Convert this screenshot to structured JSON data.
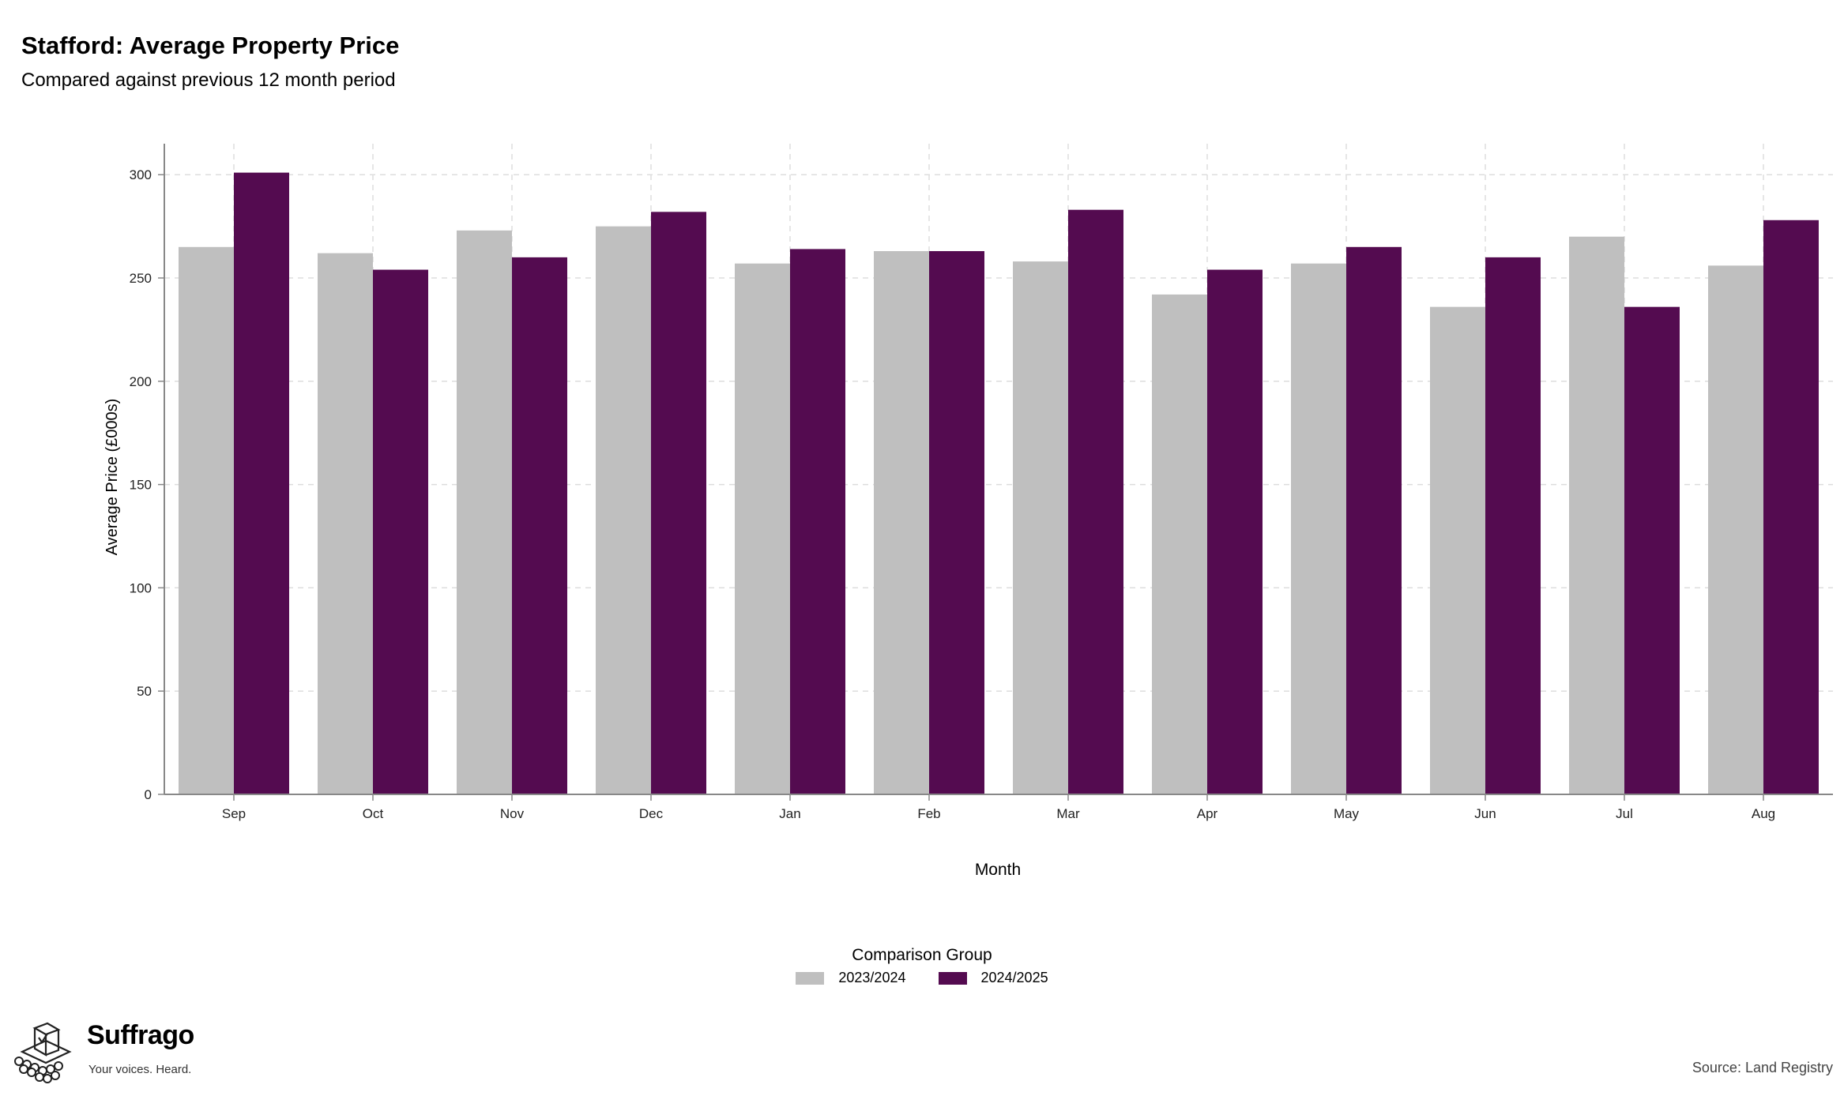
{
  "chart_data": {
    "type": "bar",
    "title": "Stafford: Average Property Price",
    "subtitle": "Compared against previous 12 month period",
    "xlabel": "Month",
    "ylabel": "Average Price (£000s)",
    "ylim": [
      0,
      315
    ],
    "yticks": [
      0,
      50,
      100,
      150,
      200,
      250,
      300
    ],
    "grid": true,
    "categories": [
      "Sep",
      "Oct",
      "Nov",
      "Dec",
      "Jan",
      "Feb",
      "Mar",
      "Apr",
      "May",
      "Jun",
      "Jul",
      "Aug"
    ],
    "legend_title": "Comparison Group",
    "legend_position": "bottom",
    "series": [
      {
        "name": "2023/2024",
        "color": "#bfbfbf",
        "values": [
          265,
          262,
          273,
          275,
          257,
          263,
          258,
          242,
          257,
          236,
          270,
          256
        ]
      },
      {
        "name": "2024/2025",
        "color": "#540b50",
        "values": [
          301,
          254,
          260,
          282,
          264,
          263,
          283,
          254,
          265,
          260,
          236,
          278
        ]
      }
    ]
  },
  "branding": {
    "name": "Suffrago",
    "tagline": "Your voices. Heard.",
    "logo_icon": "ballot-box-icon"
  },
  "source": "Source: Land Registry"
}
